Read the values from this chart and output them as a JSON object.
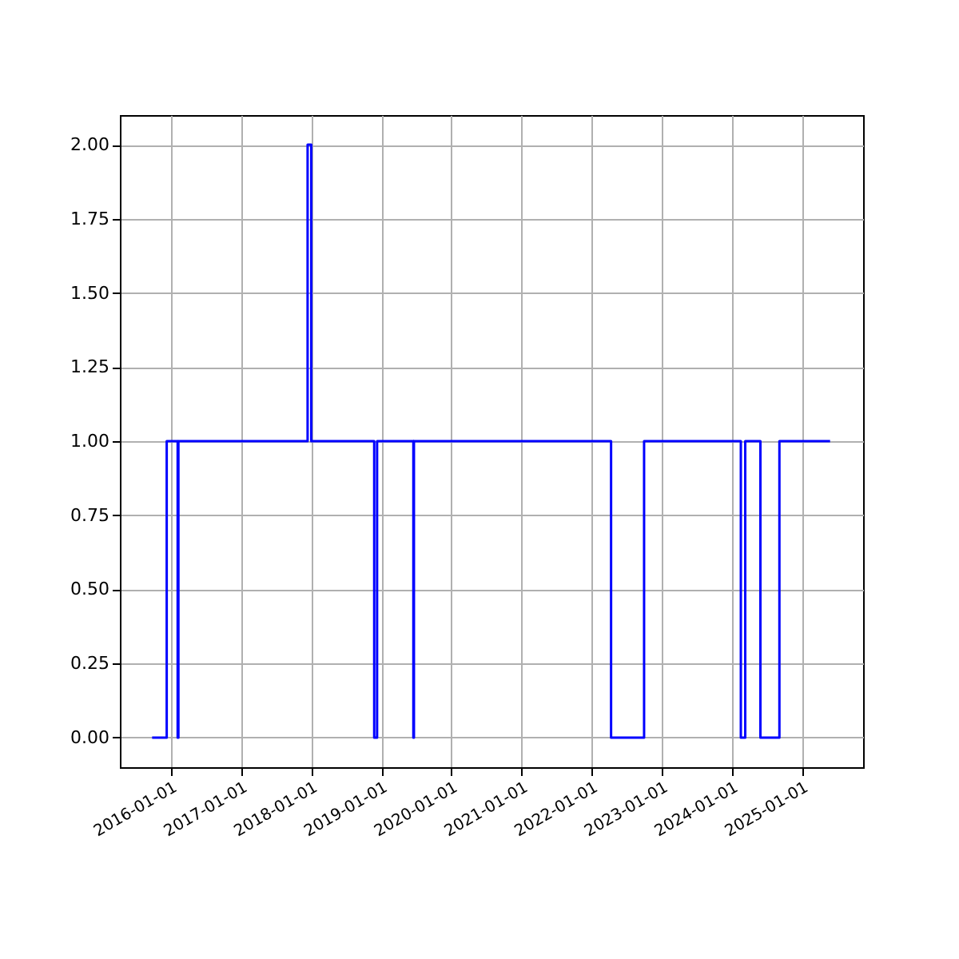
{
  "chart_data": {
    "type": "step",
    "x": [
      "2015-09-25",
      "2015-12-10",
      "2016-02-05",
      "2016-02-09",
      "2017-12-13",
      "2018-01-01",
      "2018-11-25",
      "2018-12-10",
      "2019-06-17",
      "2019-06-20",
      "2022-04-12",
      "2022-10-01",
      "2024-02-17",
      "2024-03-11",
      "2024-05-29",
      "2024-09-05",
      "2025-05-27"
    ],
    "series": [
      {
        "color": "#0000ff",
        "values": [
          0,
          1,
          0,
          1,
          2,
          1,
          0,
          1,
          0,
          1,
          0,
          1,
          0,
          1,
          0,
          1,
          1
        ]
      }
    ],
    "xlim": [
      "2015-04-10",
      "2025-11-15"
    ],
    "xticks": [
      "2016-01-01",
      "2017-01-01",
      "2018-01-01",
      "2019-01-01",
      "2020-01-01",
      "2021-01-01",
      "2022-01-01",
      "2023-01-01",
      "2024-01-01",
      "2025-01-01"
    ],
    "ylim": [
      -0.1,
      2.1
    ],
    "yticks": [
      {
        "value": 0,
        "label": "0.00"
      },
      {
        "value": 0.25,
        "label": "0.25"
      },
      {
        "value": 0.5,
        "label": "0.50"
      },
      {
        "value": 0.75,
        "label": "0.75"
      },
      {
        "value": 1,
        "label": "1.00"
      },
      {
        "value": 1.25,
        "label": "1.25"
      },
      {
        "value": 1.5,
        "label": "1.50"
      },
      {
        "value": 1.75,
        "label": "1.75"
      },
      {
        "value": 2,
        "label": "2.00"
      }
    ],
    "grid": true,
    "line_style": "solid"
  }
}
